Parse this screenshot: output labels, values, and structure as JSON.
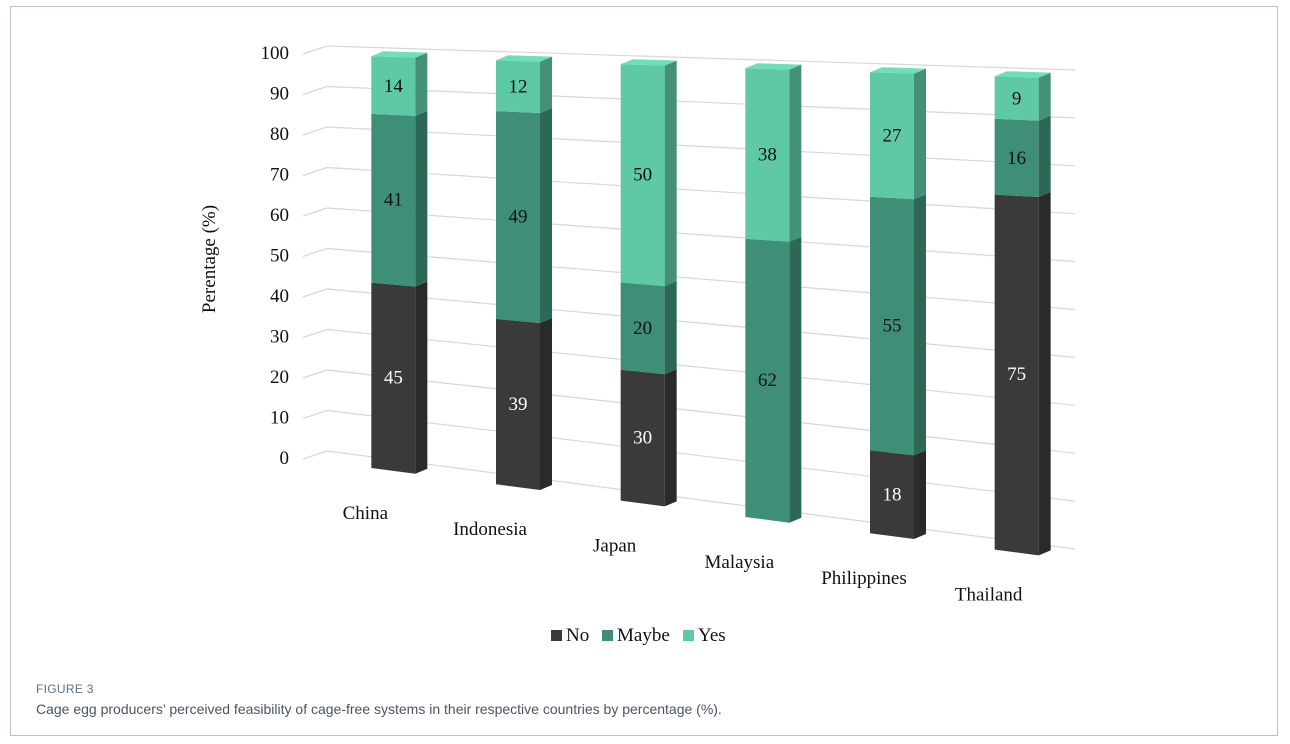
{
  "figure": {
    "label": "FIGURE 3",
    "caption": "Cage egg producers’ perceived feasibility of cage-free systems in their respective countries by percentage (%)."
  },
  "chart_data": {
    "type": "bar",
    "stacked": true,
    "three_d": true,
    "title": "",
    "xlabel": "",
    "ylabel": "Perentage (%)",
    "ylim": [
      0,
      100
    ],
    "yticks": [
      0,
      10,
      20,
      30,
      40,
      50,
      60,
      70,
      80,
      90,
      100
    ],
    "grid": true,
    "legend_position": "bottom",
    "categories": [
      "China",
      "Indonesia",
      "Japan",
      "Malaysia",
      "Philippines",
      "Thailand"
    ],
    "series": [
      {
        "name": "No",
        "values": [
          45,
          39,
          30,
          0,
          18,
          75
        ],
        "labels": [
          "45",
          "39",
          "30",
          "",
          "18",
          "75"
        ],
        "color": "#3a3a3a"
      },
      {
        "name": "Maybe",
        "values": [
          41,
          49,
          20,
          62,
          55,
          16
        ],
        "labels": [
          "41",
          "49",
          "20",
          "62",
          "55",
          "16"
        ],
        "color": "#3f8f78"
      },
      {
        "name": "Yes",
        "values": [
          14,
          12,
          50,
          38,
          27,
          9
        ],
        "labels": [
          "14",
          "12",
          "50",
          "38",
          "27",
          "9"
        ],
        "color": "#5fc9a6"
      }
    ]
  }
}
